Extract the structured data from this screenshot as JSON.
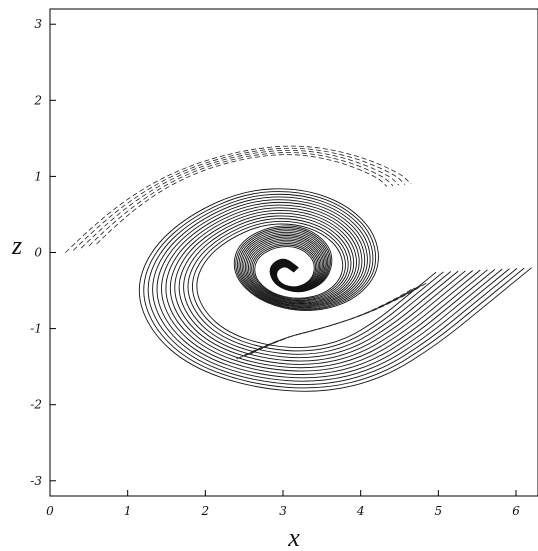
{
  "chart_data": {
    "type": "contour",
    "xlabel": "x",
    "ylabel": "z",
    "xlim": [
      0,
      6.283
    ],
    "ylim": [
      -3.2,
      3.2
    ],
    "xticks": [
      0,
      1,
      2,
      3,
      4,
      5,
      6
    ],
    "yticks": [
      -3,
      -2,
      -1,
      0,
      1,
      2,
      3
    ],
    "grid": false,
    "legend": "none",
    "vortex_center": [
      3.05,
      -0.35
    ],
    "solid_contour_scales": [
      1.0,
      0.97,
      0.94,
      0.91,
      0.88,
      0.85,
      0.82,
      0.79,
      0.76,
      0.73,
      0.7,
      0.67,
      0.64,
      0.61
    ],
    "dashed_contour_scales": [
      1.0,
      0.96,
      0.92,
      0.88,
      0.84
    ],
    "line_styles": {
      "positive": "solid",
      "negative": "dashed"
    },
    "stroke_color": "#111111"
  }
}
